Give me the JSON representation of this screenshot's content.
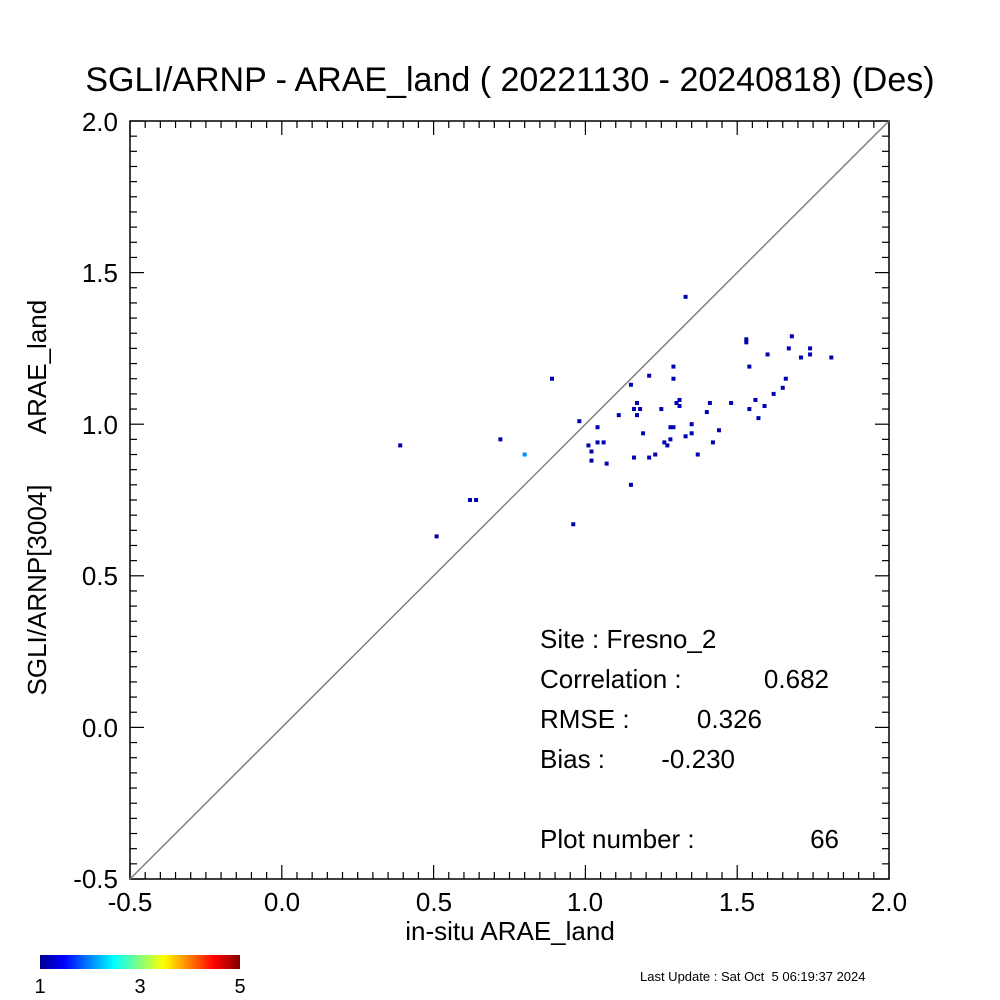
{
  "chart_data": {
    "type": "scatter",
    "title": "SGLI/ARNP - ARAE_land ( 20221130 - 20240818) (Des)",
    "xlabel": "in-situ ARAE_land",
    "ylabel_line1": "SGLI/ARNP[3004]",
    "ylabel_line2": "ARAE_land",
    "xlim": [
      -0.5,
      2.0
    ],
    "ylim": [
      -0.5,
      2.0
    ],
    "x_ticks": [
      "-0.5",
      "0.0",
      "0.5",
      "1.0",
      "1.5",
      "2.0"
    ],
    "y_ticks": [
      "-0.5",
      "0.0",
      "0.5",
      "1.0",
      "1.5",
      "2.0"
    ],
    "reference_line": "1:1",
    "grid": false,
    "colorbar": {
      "min_label": "1",
      "mid_label": "3",
      "max_label": "5",
      "colormap": "jet"
    },
    "points": [
      {
        "x": 0.39,
        "y": 0.93,
        "count": 1
      },
      {
        "x": 0.51,
        "y": 0.63,
        "count": 1
      },
      {
        "x": 0.62,
        "y": 0.75,
        "count": 1
      },
      {
        "x": 0.64,
        "y": 0.75,
        "count": 1
      },
      {
        "x": 0.72,
        "y": 0.95,
        "count": 1
      },
      {
        "x": 0.8,
        "y": 0.9,
        "count": 2
      },
      {
        "x": 0.89,
        "y": 1.15,
        "count": 1
      },
      {
        "x": 0.96,
        "y": 0.67,
        "count": 1
      },
      {
        "x": 0.98,
        "y": 1.01,
        "count": 1
      },
      {
        "x": 1.01,
        "y": 0.93,
        "count": 1
      },
      {
        "x": 1.02,
        "y": 0.88,
        "count": 1
      },
      {
        "x": 1.04,
        "y": 0.99,
        "count": 1
      },
      {
        "x": 1.04,
        "y": 0.94,
        "count": 1
      },
      {
        "x": 1.06,
        "y": 0.94,
        "count": 1
      },
      {
        "x": 1.07,
        "y": 0.87,
        "count": 1
      },
      {
        "x": 1.11,
        "y": 1.03,
        "count": 1
      },
      {
        "x": 1.15,
        "y": 1.13,
        "count": 1
      },
      {
        "x": 1.15,
        "y": 0.8,
        "count": 1
      },
      {
        "x": 1.16,
        "y": 0.89,
        "count": 1
      },
      {
        "x": 1.16,
        "y": 1.05,
        "count": 1
      },
      {
        "x": 1.17,
        "y": 1.03,
        "count": 1
      },
      {
        "x": 1.17,
        "y": 1.07,
        "count": 1
      },
      {
        "x": 1.18,
        "y": 1.05,
        "count": 1
      },
      {
        "x": 1.19,
        "y": 0.97,
        "count": 1
      },
      {
        "x": 1.21,
        "y": 1.16,
        "count": 1
      },
      {
        "x": 1.21,
        "y": 0.89,
        "count": 1
      },
      {
        "x": 1.23,
        "y": 0.9,
        "count": 1
      },
      {
        "x": 1.25,
        "y": 1.05,
        "count": 1
      },
      {
        "x": 1.27,
        "y": 0.93,
        "count": 1
      },
      {
        "x": 1.28,
        "y": 0.95,
        "count": 1
      },
      {
        "x": 1.28,
        "y": 0.99,
        "count": 1
      },
      {
        "x": 1.29,
        "y": 1.19,
        "count": 1
      },
      {
        "x": 1.29,
        "y": 1.15,
        "count": 1
      },
      {
        "x": 1.29,
        "y": 0.99,
        "count": 1
      },
      {
        "x": 1.3,
        "y": 1.07,
        "count": 1
      },
      {
        "x": 1.31,
        "y": 1.06,
        "count": 1
      },
      {
        "x": 1.31,
        "y": 1.08,
        "count": 1
      },
      {
        "x": 1.33,
        "y": 1.42,
        "count": 1
      },
      {
        "x": 1.33,
        "y": 0.96,
        "count": 1
      },
      {
        "x": 1.35,
        "y": 0.97,
        "count": 1
      },
      {
        "x": 1.35,
        "y": 1.0,
        "count": 1
      },
      {
        "x": 1.37,
        "y": 0.9,
        "count": 1
      },
      {
        "x": 1.4,
        "y": 1.04,
        "count": 1
      },
      {
        "x": 1.41,
        "y": 1.07,
        "count": 1
      },
      {
        "x": 1.42,
        "y": 0.94,
        "count": 1
      },
      {
        "x": 1.44,
        "y": 0.98,
        "count": 1
      },
      {
        "x": 1.48,
        "y": 1.07,
        "count": 1
      },
      {
        "x": 1.53,
        "y": 1.28,
        "count": 1
      },
      {
        "x": 1.53,
        "y": 1.27,
        "count": 1
      },
      {
        "x": 1.54,
        "y": 1.19,
        "count": 1
      },
      {
        "x": 1.54,
        "y": 1.05,
        "count": 1
      },
      {
        "x": 1.56,
        "y": 1.08,
        "count": 1
      },
      {
        "x": 1.57,
        "y": 1.02,
        "count": 1
      },
      {
        "x": 1.59,
        "y": 1.06,
        "count": 1
      },
      {
        "x": 1.6,
        "y": 1.23,
        "count": 1
      },
      {
        "x": 1.62,
        "y": 1.1,
        "count": 1
      },
      {
        "x": 1.65,
        "y": 1.12,
        "count": 1
      },
      {
        "x": 1.66,
        "y": 1.15,
        "count": 1
      },
      {
        "x": 1.67,
        "y": 1.25,
        "count": 1
      },
      {
        "x": 1.68,
        "y": 1.29,
        "count": 1
      },
      {
        "x": 1.71,
        "y": 1.22,
        "count": 1
      },
      {
        "x": 1.74,
        "y": 1.23,
        "count": 1
      },
      {
        "x": 1.74,
        "y": 1.25,
        "count": 1
      },
      {
        "x": 1.81,
        "y": 1.22,
        "count": 1
      },
      {
        "x": 1.02,
        "y": 0.91,
        "count": 1
      },
      {
        "x": 1.26,
        "y": 0.94,
        "count": 1
      }
    ]
  },
  "stats": {
    "site_label": "Site : Fresno_2",
    "correlation_label": "Correlation :",
    "correlation_value": "0.682",
    "rmse_label": "RMSE :",
    "rmse_value": "0.326",
    "bias_label": "Bias :",
    "bias_value": "-0.230",
    "plot_number_label": "Plot number :",
    "plot_number_value": "66"
  },
  "footer": {
    "last_update": "Last Update : Sat Oct  5 06:19:37 2024"
  }
}
